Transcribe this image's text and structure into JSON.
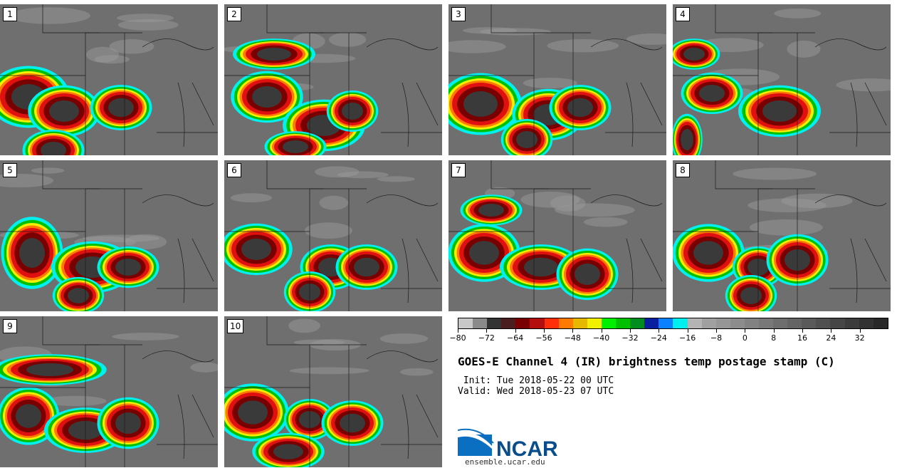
{
  "panels": [
    {
      "label": "1"
    },
    {
      "label": "2"
    },
    {
      "label": "3"
    },
    {
      "label": "4"
    },
    {
      "label": "5"
    },
    {
      "label": "6"
    },
    {
      "label": "7"
    },
    {
      "label": "8"
    },
    {
      "label": "9"
    },
    {
      "label": "10"
    }
  ],
  "colorbar": {
    "colors": [
      "#c8c8c8",
      "#8a8a8a",
      "#333333",
      "#4a1e1e",
      "#780000",
      "#b40f0f",
      "#ff2f0a",
      "#ff7a00",
      "#e6b800",
      "#f0f000",
      "#00f000",
      "#00c000",
      "#008c1e",
      "#0a1ea0",
      "#0a82ff",
      "#00f0f0",
      "#b4b4b4",
      "#a0a0a0",
      "#969696",
      "#8c8c8c",
      "#828282",
      "#787878",
      "#6e6e6e",
      "#646464",
      "#5a5a5a",
      "#505050",
      "#464646",
      "#3c3c3c",
      "#323232",
      "#282828"
    ],
    "tick_labels": [
      "−80",
      "−72",
      "−64",
      "−56",
      "−48",
      "−40",
      "−32",
      "−24",
      "−16",
      "−8",
      "0",
      "8",
      "16",
      "24",
      "32"
    ]
  },
  "title": "GOES-E Channel 4 (IR) brightness temp postage stamp (C)",
  "init": " Init: Tue 2018-05-22 00 UTC",
  "valid": "Valid: Wed 2018-05-23 07 UTC",
  "logo": {
    "text": "NCAR"
  },
  "url": "ensemble.ucar.edu"
}
